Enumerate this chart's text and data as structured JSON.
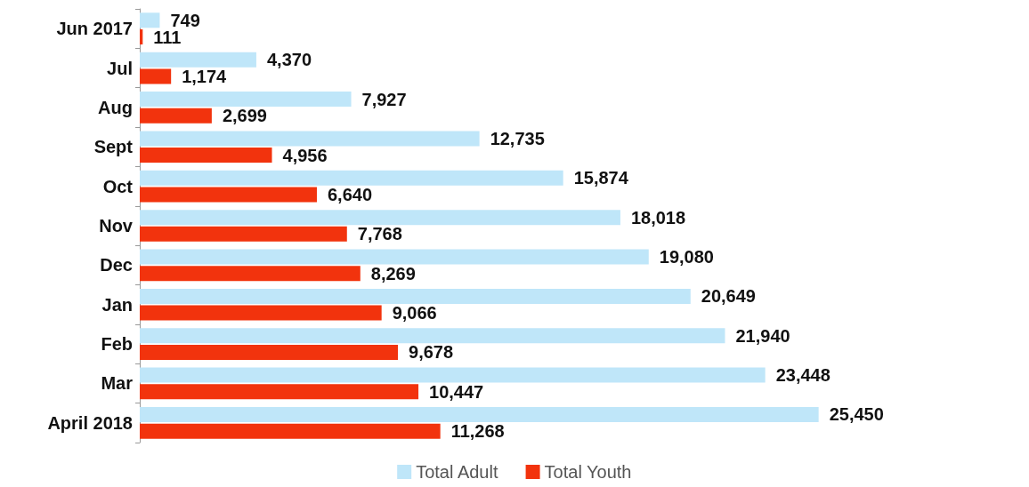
{
  "chart_data": {
    "type": "bar",
    "orientation": "horizontal",
    "categories": [
      "Jun 2017",
      "Jul",
      "Aug",
      "Sept",
      "Oct",
      "Nov",
      "Dec",
      "Jan",
      "Feb",
      "Mar",
      "April 2018"
    ],
    "series": [
      {
        "name": "Total Adult",
        "color": "#bfe6f9",
        "values": [
          749,
          4370,
          7927,
          12735,
          15874,
          18018,
          19080,
          20649,
          21940,
          23448,
          25450
        ],
        "value_labels": [
          "749",
          "4,370",
          "7,927",
          "12,735",
          "15,874",
          "18,018",
          "19,080",
          "20,649",
          "21,940",
          "23,448",
          "25,450"
        ]
      },
      {
        "name": "Total Youth",
        "color": "#f2330d",
        "values": [
          111,
          1174,
          2699,
          4956,
          6640,
          7768,
          8269,
          9066,
          9678,
          10447,
          11268
        ],
        "value_labels": [
          "111",
          "1,174",
          "2,699",
          "4,956",
          "6,640",
          "7,768",
          "8,269",
          "9,066",
          "9,678",
          "10,447",
          "11,268"
        ]
      }
    ],
    "tick_labels": "y",
    "legend": "bottom"
  }
}
